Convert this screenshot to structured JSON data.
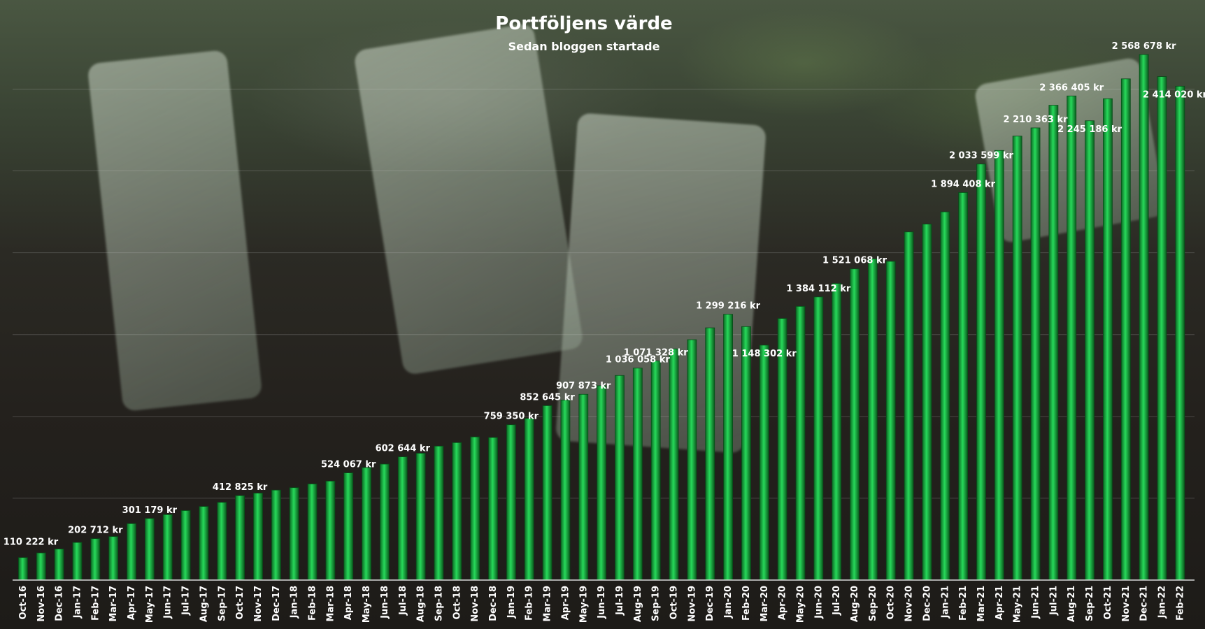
{
  "chart_data": {
    "type": "bar",
    "title": "Portföljens värde",
    "subtitle": "Sedan bloggen startade",
    "xlabel": "",
    "ylabel": "",
    "ylim": [
      0,
      2750000
    ],
    "grid": true,
    "legend": "none",
    "bar_color": "#1db84a",
    "categories": [
      "Oct-16",
      "Nov-16",
      "Dec-16",
      "Jan-17",
      "Feb-17",
      "Mar-17",
      "Apr-17",
      "May-17",
      "Jun-17",
      "Jul-17",
      "Aug-17",
      "Sep-17",
      "Oct-17",
      "Nov-17",
      "Dec-17",
      "Jan-18",
      "Feb-18",
      "Mar-18",
      "Apr-18",
      "May-18",
      "Jun-18",
      "Jul-18",
      "Aug-18",
      "Sep-18",
      "Oct-18",
      "Nov-18",
      "Dec-18",
      "Jan-19",
      "Feb-19",
      "Mar-19",
      "Apr-19",
      "May-19",
      "Jun-19",
      "Jul-19",
      "Aug-19",
      "Sep-19",
      "Oct-19",
      "Nov-19",
      "Dec-19",
      "Jan-20",
      "Feb-20",
      "Mar-20",
      "Apr-20",
      "May-20",
      "Jun-20",
      "Jul-20",
      "Aug-20",
      "Sep-20",
      "Oct-20",
      "Nov-20",
      "Dec-20",
      "Jan-21",
      "Feb-21",
      "Mar-21",
      "Apr-21",
      "May-21",
      "Jun-21",
      "Jul-21",
      "Aug-21",
      "Sep-21",
      "Oct-21",
      "Nov-21",
      "Dec-21",
      "Jan-22",
      "Feb-22"
    ],
    "values": [
      110222,
      133000,
      152000,
      184000,
      202712,
      213000,
      276000,
      301179,
      320000,
      340000,
      360000,
      380000,
      412825,
      425000,
      440000,
      452000,
      470000,
      484000,
      524067,
      550000,
      567000,
      602644,
      620000,
      655000,
      672000,
      700000,
      697000,
      759350,
      790000,
      852645,
      880000,
      907873,
      950000,
      1000000,
      1036058,
      1071328,
      1130000,
      1175000,
      1233000,
      1299216,
      1239000,
      1148302,
      1279000,
      1338000,
      1384112,
      1450000,
      1521068,
      1570000,
      1558000,
      1702000,
      1740000,
      1800000,
      1894408,
      2033599,
      2100000,
      2170000,
      2210363,
      2321000,
      2366405,
      2245186,
      2353000,
      2450000,
      2568678,
      2461000,
      2414020
    ],
    "data_labels": [
      {
        "index": 0,
        "text": "110 222 kr"
      },
      {
        "index": 4,
        "text": "202 712 kr"
      },
      {
        "index": 7,
        "text": "301 179 kr"
      },
      {
        "index": 12,
        "text": "412 825 kr"
      },
      {
        "index": 18,
        "text": "524 067 kr"
      },
      {
        "index": 21,
        "text": "602 644 kr"
      },
      {
        "index": 27,
        "text": "759 350 kr"
      },
      {
        "index": 29,
        "text": "852 645 kr"
      },
      {
        "index": 31,
        "text": "907 873 kr"
      },
      {
        "index": 34,
        "text": "1 036 058 kr"
      },
      {
        "index": 35,
        "text": "1 071 328 kr"
      },
      {
        "index": 39,
        "text": "1 299 216 kr"
      },
      {
        "index": 41,
        "text": "1 148 302 kr"
      },
      {
        "index": 44,
        "text": "1 384 112 kr"
      },
      {
        "index": 46,
        "text": "1 521 068 kr"
      },
      {
        "index": 52,
        "text": "1 894 408 kr"
      },
      {
        "index": 53,
        "text": "2 033 599 kr"
      },
      {
        "index": 56,
        "text": "2 210 363 kr"
      },
      {
        "index": 58,
        "text": "2 366 405 kr"
      },
      {
        "index": 59,
        "text": "2 245 186 kr"
      },
      {
        "index": 62,
        "text": "2 568 678 kr"
      },
      {
        "index": 64,
        "text": "2 414 020 kr"
      }
    ]
  }
}
